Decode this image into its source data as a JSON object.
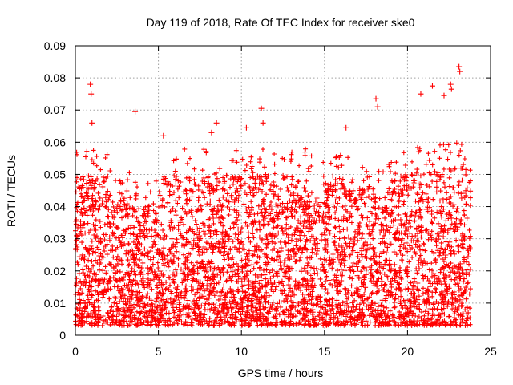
{
  "chart_data": {
    "type": "scatter",
    "title": "Day 119 of 2018, Rate Of TEC Index for receiver ske0",
    "xlabel": "GPS time / hours",
    "ylabel": "ROTI / TECUs",
    "xlim": [
      0,
      25
    ],
    "ylim": [
      0,
      0.09
    ],
    "x_ticks": [
      "0",
      "5",
      "10",
      "15",
      "20",
      "25"
    ],
    "y_ticks": [
      "0",
      "0.01",
      "0.02",
      "0.03",
      "0.04",
      "0.05",
      "0.06",
      "0.07",
      "0.08",
      "0.09"
    ],
    "grid": true,
    "marker": "plus",
    "color": "#ff0000",
    "series": [
      {
        "name": "ROTI",
        "description": "dense cloud of ROTI samples between 0 and ~24 h, mostly 0.003-0.055 TECU/s",
        "x_range": [
          0,
          23.8
        ],
        "bulk_y_range": [
          0.003,
          0.055
        ],
        "peaks": [
          {
            "x": 0.9,
            "y": 0.078
          },
          {
            "x": 0.95,
            "y": 0.075
          },
          {
            "x": 1.0,
            "y": 0.066
          },
          {
            "x": 3.6,
            "y": 0.0695
          },
          {
            "x": 5.3,
            "y": 0.062
          },
          {
            "x": 8.2,
            "y": 0.063
          },
          {
            "x": 8.5,
            "y": 0.066
          },
          {
            "x": 10.3,
            "y": 0.0645
          },
          {
            "x": 11.2,
            "y": 0.0705
          },
          {
            "x": 11.3,
            "y": 0.066
          },
          {
            "x": 16.3,
            "y": 0.0645
          },
          {
            "x": 18.1,
            "y": 0.0735
          },
          {
            "x": 18.2,
            "y": 0.071
          },
          {
            "x": 20.8,
            "y": 0.075
          },
          {
            "x": 21.5,
            "y": 0.0775
          },
          {
            "x": 22.2,
            "y": 0.0745
          },
          {
            "x": 22.6,
            "y": 0.078
          },
          {
            "x": 22.65,
            "y": 0.0765
          },
          {
            "x": 23.1,
            "y": 0.0835
          },
          {
            "x": 23.15,
            "y": 0.082
          }
        ]
      }
    ]
  }
}
